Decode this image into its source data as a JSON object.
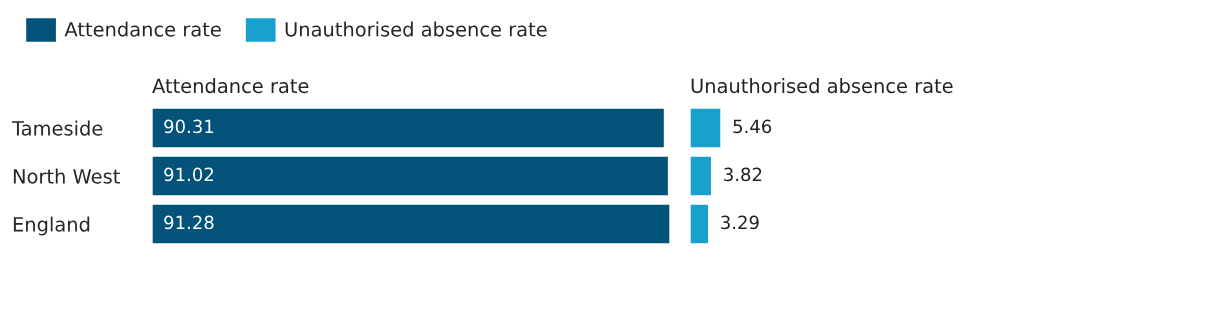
{
  "chart_data": [
    {
      "type": "bar",
      "orientation": "horizontal",
      "title": "Attendance rate",
      "categories": [
        "Tameside",
        "North West",
        "England"
      ],
      "series": [
        {
          "name": "Attendance rate",
          "color": "#02527a",
          "values": [
            90.31,
            91.02,
            91.28
          ]
        }
      ],
      "data_labels": true,
      "legend": "top left",
      "grid": false
    },
    {
      "type": "bar",
      "orientation": "horizontal",
      "title": "Unauthorised absence rate",
      "categories": [
        null,
        null,
        null
      ],
      "series": [
        {
          "name": "Unauthorised absence rate",
          "color": "#18a1cd",
          "values": [
            5.46,
            3.82,
            3.29
          ]
        }
      ],
      "data_labels": true,
      "legend": "top left",
      "grid": false
    }
  ]
}
